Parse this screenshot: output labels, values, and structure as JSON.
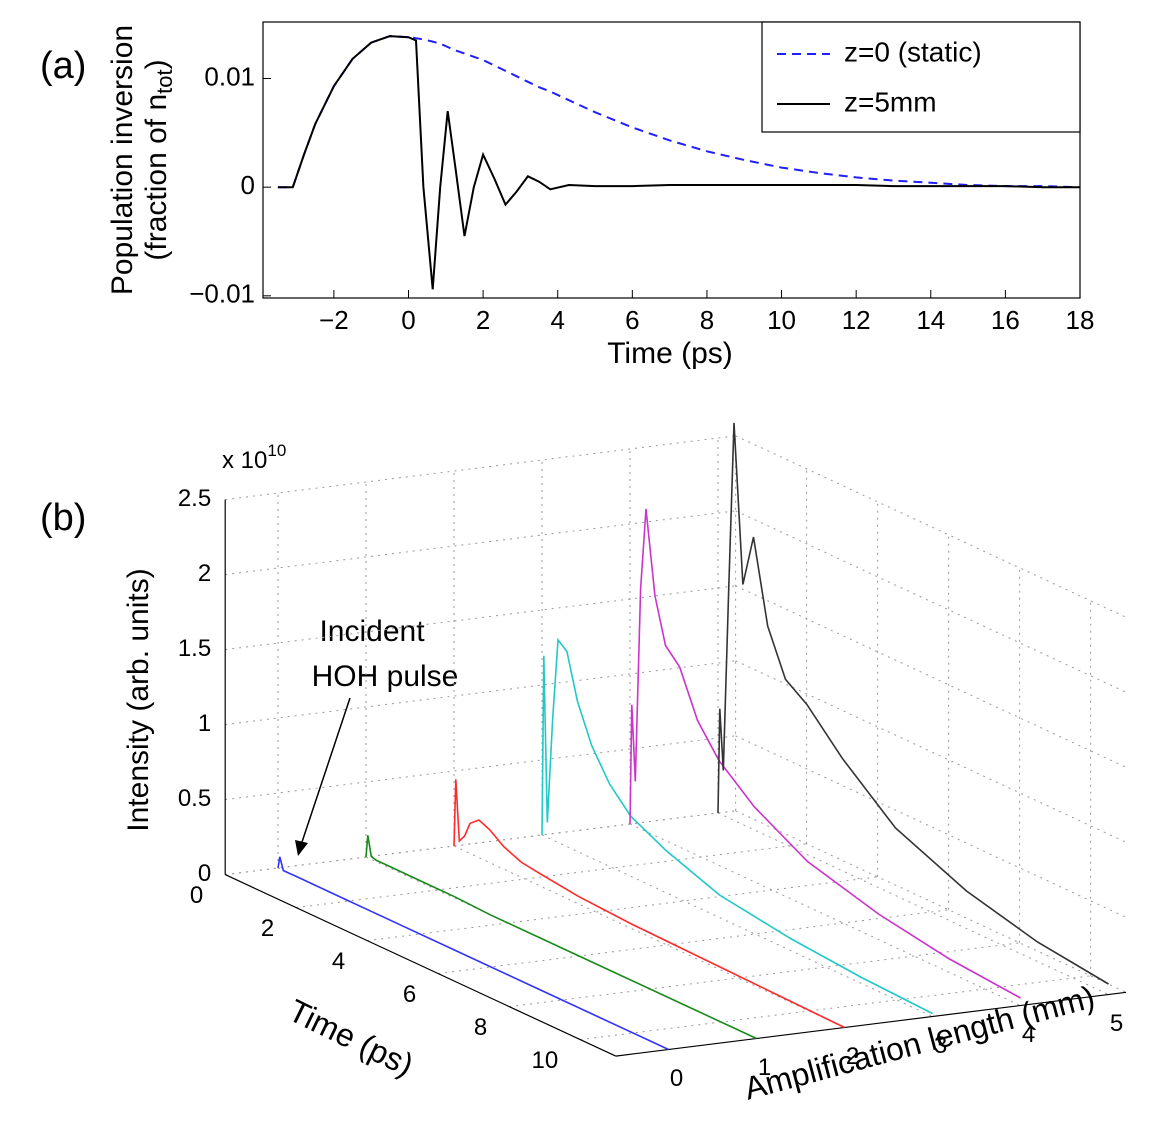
{
  "chart_data": [
    {
      "type": "line",
      "panel": "(a)",
      "xlabel": "Time (ps)",
      "ylabel": [
        "Population inversion",
        "(fraction of n",
        "tot",
        ")"
      ],
      "x": [
        -3.5,
        -3.1,
        -2.8,
        -2.5,
        -2,
        -1.5,
        -1,
        -0.5,
        0,
        0.2,
        0.4,
        0.65,
        0.85,
        1.05,
        1.25,
        1.5,
        1.75,
        2.0,
        2.3,
        2.6,
        2.9,
        3.2,
        3.5,
        3.8,
        4.3,
        5,
        6,
        7,
        8,
        9,
        10,
        11,
        12,
        13,
        14,
        15,
        16,
        17,
        18
      ],
      "series": [
        {
          "name": "z=0 (static)",
          "color": "#1f1fff",
          "line_style": "dashed",
          "values": [
            0,
            0,
            0.003,
            0.0058,
            0.0093,
            0.0118,
            0.0133,
            0.0139,
            0.0138,
            0.0137,
            0.0136,
            0.0134,
            0.0132,
            0.0129,
            0.0126,
            0.0123,
            0.012,
            0.0117,
            0.0112,
            0.0107,
            0.0102,
            0.0097,
            0.0092,
            0.0088,
            0.008,
            0.0069,
            0.0055,
            0.0043,
            0.0033,
            0.0025,
            0.0018,
            0.0013,
            0.0009,
            0.0006,
            0.0004,
            0.0002,
            0.0001,
            0.0001,
            0
          ]
        },
        {
          "name": "z=5mm",
          "color": "#000000",
          "line_style": "solid",
          "values": [
            0,
            0,
            0.003,
            0.0058,
            0.0093,
            0.0118,
            0.0133,
            0.0139,
            0.0138,
            0.0135,
            0.0,
            -0.0094,
            0.0,
            0.007,
            0.002,
            -0.0045,
            0.0,
            0.003,
            0.0008,
            -0.0016,
            -0.0004,
            0.001,
            0.0005,
            -0.0002,
            0.0002,
            0.0001,
            0.0001,
            0.0002,
            0.0002,
            0.0002,
            0.0002,
            0.0002,
            0.0002,
            0.0001,
            0.0001,
            0.0001,
            0.0001,
            0,
            0
          ]
        }
      ],
      "xlim": [
        -3.9,
        18
      ],
      "xticks": [
        {
          "value": -2,
          "label": "−2"
        },
        0,
        2,
        4,
        6,
        8,
        10,
        12,
        14,
        16,
        18
      ],
      "ylim": [
        -0.0102,
        0.0152
      ],
      "yticks": [
        {
          "value": -0.01,
          "label": "−0.01"
        },
        0,
        0.01
      ],
      "legend": "upper right",
      "grid": false
    },
    {
      "type": "waterfall3d",
      "panel": "(b)",
      "xlabel": "Time (ps)",
      "zlabel": "Amplification length (mm)",
      "ylabel": "Intensity (arb. units)",
      "multiplier": {
        "base": "x 10",
        "exponent": "10"
      },
      "annotation": [
        "Incident",
        "HOH pulse"
      ],
      "x": [
        0,
        0.05,
        0.15,
        0.3,
        0.45,
        0.7,
        1.0,
        1.4,
        1.9,
        2.5,
        3.5,
        5,
        7,
        9,
        11
      ],
      "series": [
        {
          "z": 0,
          "color": "#3333ff",
          "values": [
            0,
            0.08,
            0,
            0,
            0,
            0,
            0,
            0,
            0,
            0,
            0,
            0,
            0,
            0,
            0
          ]
        },
        {
          "z": 1,
          "color": "#1a8a1a",
          "values": [
            0,
            0.15,
            0.02,
            0.01,
            0.01,
            0.01,
            0.01,
            0.01,
            0.01,
            0.01,
            0,
            0,
            0,
            0,
            0
          ]
        },
        {
          "z": 2,
          "color": "#ff2a2a",
          "values": [
            0,
            0.45,
            0.05,
            0.1,
            0.2,
            0.25,
            0.22,
            0.15,
            0.1,
            0.08,
            0.05,
            0.03,
            0.02,
            0.01,
            0
          ]
        },
        {
          "z": 3,
          "color": "#22c8c8",
          "values": [
            0,
            1.2,
            0.1,
            0.8,
            1.35,
            1.3,
            1.0,
            0.75,
            0.55,
            0.4,
            0.28,
            0.15,
            0.08,
            0.04,
            0.02
          ]
        },
        {
          "z": 4,
          "color": "#cc33cc",
          "values": [
            0,
            0.8,
            0.3,
            1.6,
            2.15,
            1.6,
            1.3,
            1.2,
            0.9,
            0.7,
            0.5,
            0.3,
            0.17,
            0.09,
            0.05
          ]
        },
        {
          "z": 5,
          "color": "#333333",
          "values": [
            0,
            0.7,
            0.3,
            1.5,
            2.65,
            1.6,
            1.95,
            1.4,
            1.1,
            1.0,
            0.75,
            0.45,
            0.25,
            0.13,
            0.07
          ]
        }
      ],
      "xlim": [
        0,
        11
      ],
      "xticks": [
        0,
        2,
        4,
        6,
        8,
        10
      ],
      "zlim": [
        -0.6,
        5.2
      ],
      "zticks": [
        0,
        1,
        2,
        3,
        4,
        5
      ],
      "ylim": [
        0,
        2.5
      ],
      "yticks": [
        0,
        0.5,
        1,
        1.5,
        2,
        2.5
      ],
      "grid": true
    }
  ]
}
